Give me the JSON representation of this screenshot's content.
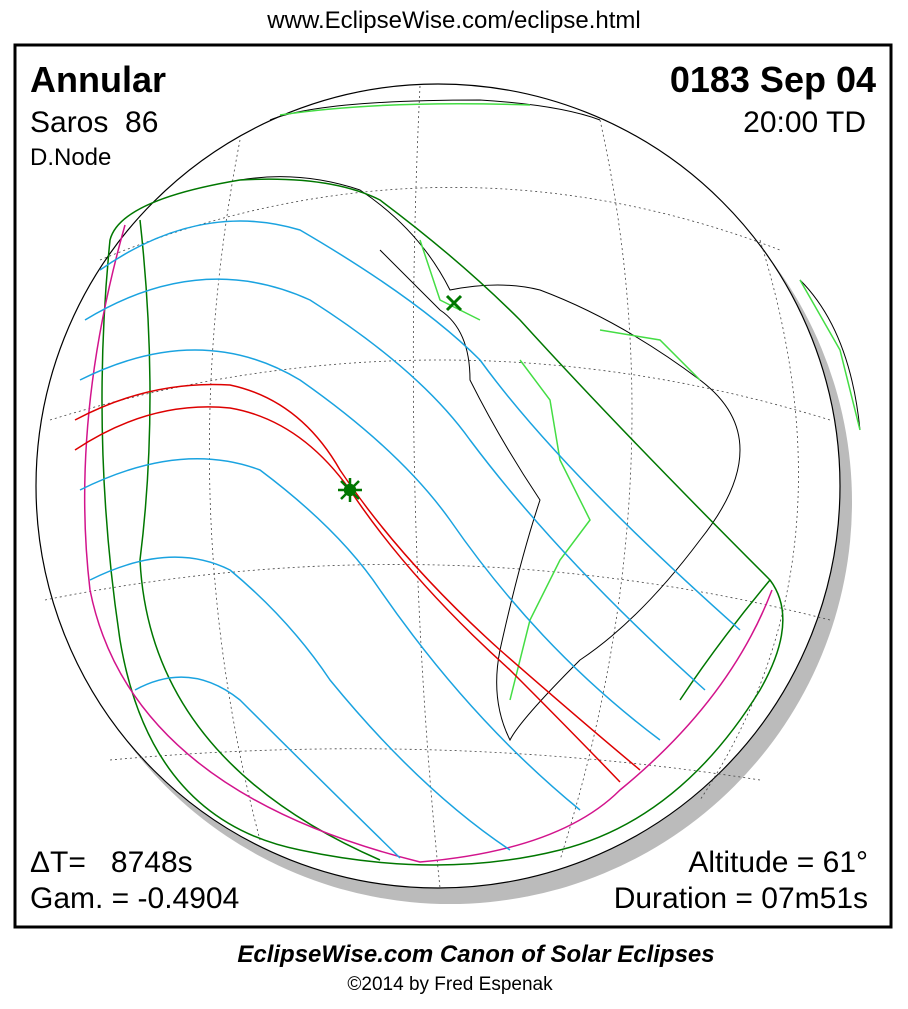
{
  "url": "www.EclipseWise.com/eclipse.html",
  "eclipse_type": "Annular",
  "date": "0183 Sep 04",
  "saros": "Saros  86",
  "time": "20:00 TD",
  "node": "D.Node",
  "delta_t": "ΔT=   8748s",
  "gamma": "Gam. = -0.4904",
  "altitude": "Altitude = 61°",
  "duration": "Duration = 07m51s",
  "footer_title": "EclipseWise.com Canon of Solar Eclipses",
  "copyright": "©2014 by Fred Espenak"
}
